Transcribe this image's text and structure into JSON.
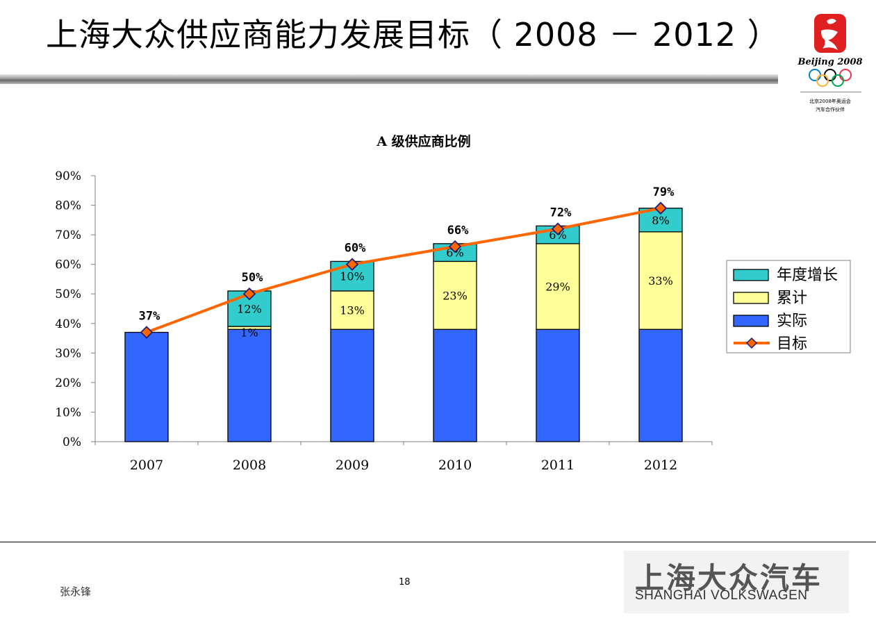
{
  "slide": {
    "title": "上海大众供应商能力发展目标（ 2008 － 2012 ）",
    "author": "张永锋",
    "page_number": "18"
  },
  "logo": {
    "text": "Beijing 2008",
    "caption_1": "北京2008年奥运会",
    "caption_2": "汽车合作伙伴"
  },
  "brand": {
    "name_cn": "上海大众汽车",
    "name_en": "SHANGHAI VOLKSWAGEN"
  },
  "colors": {
    "actual": "#3366FF",
    "cumulative": "#FFFF99",
    "annual_growth": "#33CCCC",
    "target": "#FF6600",
    "target_marker_edge": "#1F1F7A"
  },
  "chart_data": {
    "type": "bar",
    "stacked": true,
    "title": "A 级供应商比例",
    "categories": [
      "2007",
      "2008",
      "2009",
      "2010",
      "2011",
      "2012"
    ],
    "ylim": [
      0,
      0.9
    ],
    "y_ticks": [
      "0%",
      "10%",
      "20%",
      "30%",
      "40%",
      "50%",
      "60%",
      "70%",
      "80%",
      "90%"
    ],
    "legend_position": "right",
    "grid": false,
    "series": [
      {
        "name": "实际",
        "key": "actual",
        "values": [
          0.37,
          0.38,
          0.38,
          0.38,
          0.38,
          0.38
        ],
        "labels": [
          "",
          "",
          "",
          "",
          "",
          ""
        ]
      },
      {
        "name": "累计",
        "key": "cumulative",
        "values": [
          0,
          0.01,
          0.13,
          0.23,
          0.29,
          0.33
        ],
        "labels": [
          "",
          "1%",
          "13%",
          "23%",
          "29%",
          "33%"
        ]
      },
      {
        "name": "年度增长",
        "key": "annual_growth",
        "values": [
          0,
          0.12,
          0.1,
          0.06,
          0.06,
          0.08
        ],
        "labels": [
          "",
          "12%",
          "10%",
          "6%",
          "6%",
          "8%"
        ]
      }
    ],
    "line": {
      "name": "目标",
      "key": "target",
      "values": [
        0.37,
        0.5,
        0.6,
        0.66,
        0.72,
        0.79
      ],
      "labels": [
        "37%",
        "50%",
        "60%",
        "66%",
        "72%",
        "79%"
      ]
    },
    "legend": [
      "年度增长",
      "累计",
      "实际",
      "目标"
    ]
  }
}
